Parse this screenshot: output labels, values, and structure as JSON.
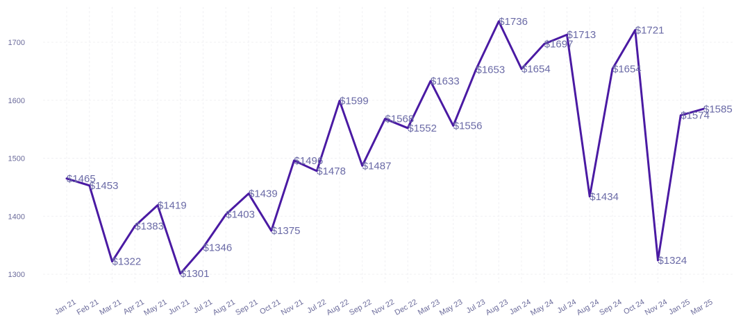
{
  "colors": {
    "line": "#4a1aa3",
    "label": "#6a6aa6",
    "tick": "#6a6a9a",
    "grid": "#f0f0f3"
  },
  "chart_data": {
    "type": "line",
    "title": "",
    "xlabel": "",
    "ylabel": "",
    "grid": true,
    "legend": "none",
    "ylim": [
      1290,
      1755
    ],
    "y_ticks": [
      1300,
      1400,
      1500,
      1600,
      1700
    ],
    "value_prefix": "$",
    "categories": [
      "Jan 21",
      "Feb 21",
      "Mar 21",
      "Apr 21",
      "May 21",
      "Jun 21",
      "Jul 21",
      "Aug 21",
      "Sep 21",
      "Oct 21",
      "Nov 21",
      "Jul 22",
      "Aug 22",
      "Sep 22",
      "Nov 22",
      "Dec 22",
      "Mar 23",
      "May 23",
      "Jul 23",
      "Aug 23",
      "Jan 24",
      "May 24",
      "Jul 24",
      "Aug 24",
      "Sep 24",
      "Oct 24",
      "Nov 24",
      "Jan 25",
      "Mar 25"
    ],
    "series": [
      {
        "values": [
          1465,
          1453,
          1322,
          1383,
          1419,
          1301,
          1346,
          1403,
          1439,
          1375,
          1496,
          1478,
          1599,
          1487,
          1568,
          1552,
          1633,
          1556,
          1653,
          1736,
          1654,
          1697,
          1713,
          1434,
          1654,
          1721,
          1324,
          1574,
          1585
        ],
        "labels": [
          "$1465",
          "$1453",
          "$1322",
          "$1383",
          "$1419",
          "$1301",
          "$1346",
          "$1403",
          "$1439",
          "$1375",
          "$1496",
          "$1478",
          "$1599",
          "$1487",
          "$1568",
          "$1552",
          "$1633",
          "$1556",
          "$1653",
          "$1736",
          "$1654",
          "$1697",
          "$1713",
          "$1434",
          "$1654",
          "$1721",
          "$1324",
          "$1574",
          "$1585"
        ]
      }
    ]
  }
}
